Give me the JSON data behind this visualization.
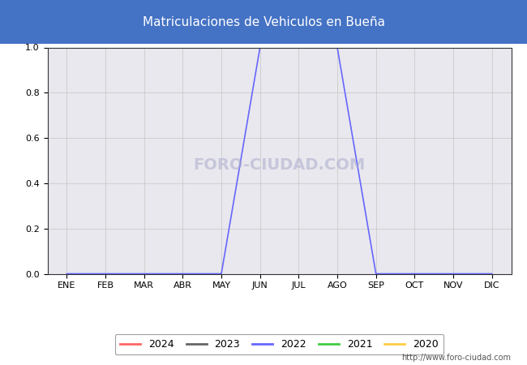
{
  "title": "Matriculaciones de Vehiculos en Bueña",
  "title_bg_color": "#4472c4",
  "title_text_color": "#ffffff",
  "months": [
    "ENE",
    "FEB",
    "MAR",
    "ABR",
    "MAY",
    "JUN",
    "JUL",
    "AGO",
    "SEP",
    "OCT",
    "NOV",
    "DIC"
  ],
  "series": {
    "2024": {
      "color": "#ff6666",
      "data": [
        0,
        0,
        0,
        0,
        0,
        0,
        0,
        0,
        0,
        0,
        0,
        0
      ]
    },
    "2023": {
      "color": "#666666",
      "data": [
        0,
        0,
        0,
        0,
        0,
        0,
        0,
        0,
        0,
        0,
        0,
        0
      ]
    },
    "2022": {
      "color": "#6666ff",
      "data": [
        0.0,
        0.0,
        0.0,
        0.0,
        0.0,
        1.0,
        1.0,
        1.0,
        0.0,
        0.0,
        0.0,
        0.0
      ]
    },
    "2021": {
      "color": "#44cc44",
      "data": [
        0,
        0,
        0,
        0,
        0,
        0,
        0,
        0,
        0,
        0,
        0,
        0
      ]
    },
    "2020": {
      "color": "#ffcc44",
      "data": [
        0,
        0,
        0,
        0,
        0,
        0,
        0,
        0,
        0,
        0,
        0,
        0
      ]
    }
  },
  "ylim": [
    0.0,
    1.0
  ],
  "yticks": [
    0.0,
    0.2,
    0.4,
    0.6,
    0.8,
    1.0
  ],
  "grid_color": "#cccccc",
  "plot_bg_color": "#e8e8ee",
  "bg_color": "#ffffff",
  "watermark_chart": "FORO-CIUDAD.COM",
  "watermark_url": "http://www.foro-ciudad.com",
  "legend_years": [
    "2024",
    "2023",
    "2022",
    "2021",
    "2020"
  ],
  "title_fontsize": 11,
  "tick_fontsize": 8
}
